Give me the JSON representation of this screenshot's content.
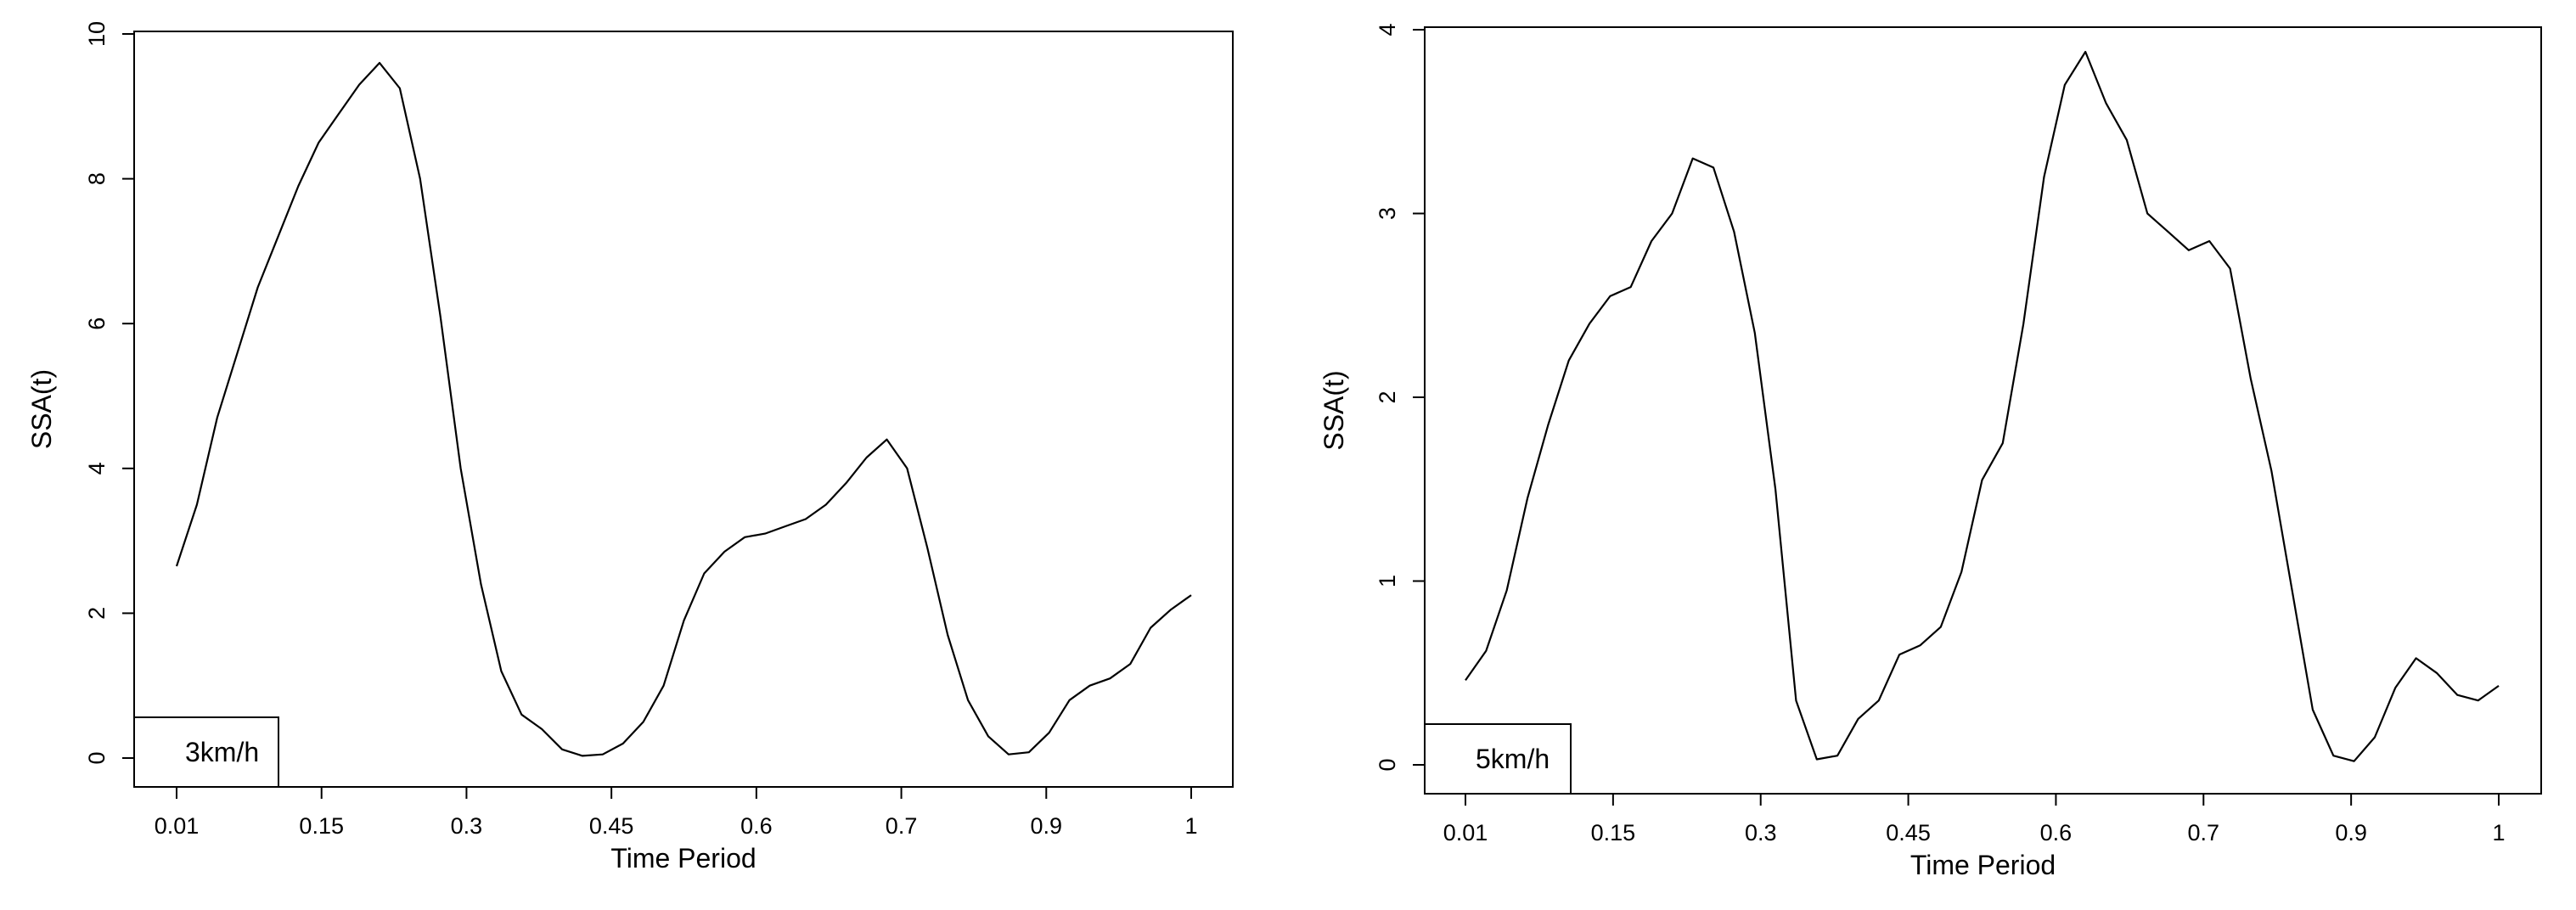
{
  "chart_data": [
    {
      "type": "line",
      "title": "",
      "xlabel": "Time Period",
      "ylabel": "SSA(t)",
      "xlim": [
        0,
        1
      ],
      "ylim": [
        0,
        10
      ],
      "x_tick_labels": [
        "0.01",
        "0.15",
        "0.3",
        "0.45",
        "0.6",
        "0.7",
        "0.9",
        "1"
      ],
      "y_ticks": [
        0,
        2,
        4,
        6,
        8,
        10
      ],
      "y_tick_labels": [
        "0",
        "2",
        "4",
        "6",
        "8",
        "10"
      ],
      "grid": false,
      "legend": {
        "position": "bottom-left",
        "text": "3km/h"
      },
      "line_color": "#000000",
      "series": [
        {
          "x": [
            0.0,
            0.02,
            0.04,
            0.06,
            0.08,
            0.1,
            0.12,
            0.14,
            0.16,
            0.18,
            0.2,
            0.22,
            0.24,
            0.26,
            0.28,
            0.3,
            0.32,
            0.34,
            0.36,
            0.38,
            0.4,
            0.42,
            0.44,
            0.46,
            0.48,
            0.5,
            0.52,
            0.54,
            0.56,
            0.58,
            0.6,
            0.62,
            0.64,
            0.66,
            0.68,
            0.7,
            0.72,
            0.74,
            0.76,
            0.78,
            0.8,
            0.82,
            0.84,
            0.86,
            0.88,
            0.9,
            0.92,
            0.94,
            0.96,
            0.98,
            1.0
          ],
          "values": [
            2.65,
            3.5,
            4.7,
            5.6,
            6.5,
            7.2,
            7.9,
            8.5,
            8.9,
            9.3,
            9.6,
            9.25,
            8.0,
            6.1,
            4.0,
            2.4,
            1.2,
            0.6,
            0.4,
            0.12,
            0.03,
            0.05,
            0.2,
            0.5,
            1.0,
            1.9,
            2.55,
            2.85,
            3.05,
            3.1,
            3.2,
            3.3,
            3.5,
            3.8,
            4.15,
            4.4,
            4.0,
            2.9,
            1.7,
            0.8,
            0.3,
            0.05,
            0.08,
            0.35,
            0.8,
            1.0,
            1.1,
            1.3,
            1.8,
            2.05,
            2.25
          ]
        }
      ]
    },
    {
      "type": "line",
      "title": "",
      "xlabel": "Time Period",
      "ylabel": "SSA(t)",
      "xlim": [
        0,
        1
      ],
      "ylim": [
        0,
        4
      ],
      "x_tick_labels": [
        "0.01",
        "0.15",
        "0.3",
        "0.45",
        "0.6",
        "0.7",
        "0.9",
        "1"
      ],
      "y_ticks": [
        0,
        1,
        2,
        3,
        4
      ],
      "y_tick_labels": [
        "0",
        "1",
        "2",
        "3",
        "4"
      ],
      "grid": false,
      "legend": {
        "position": "bottom-left",
        "text": "5km/h"
      },
      "line_color": "#000000",
      "series": [
        {
          "x": [
            0.0,
            0.02,
            0.04,
            0.06,
            0.08,
            0.1,
            0.12,
            0.14,
            0.16,
            0.18,
            0.2,
            0.22,
            0.24,
            0.26,
            0.28,
            0.3,
            0.32,
            0.34,
            0.36,
            0.38,
            0.4,
            0.42,
            0.44,
            0.46,
            0.48,
            0.5,
            0.52,
            0.54,
            0.56,
            0.58,
            0.6,
            0.62,
            0.64,
            0.66,
            0.68,
            0.7,
            0.72,
            0.74,
            0.76,
            0.78,
            0.8,
            0.82,
            0.84,
            0.86,
            0.88,
            0.9,
            0.92,
            0.94,
            0.96,
            0.98,
            1.0
          ],
          "values": [
            0.46,
            0.62,
            0.95,
            1.45,
            1.85,
            2.2,
            2.4,
            2.55,
            2.6,
            2.85,
            3.0,
            3.3,
            3.25,
            2.9,
            2.35,
            1.5,
            0.35,
            0.03,
            0.05,
            0.25,
            0.35,
            0.6,
            0.65,
            0.75,
            1.05,
            1.55,
            1.75,
            2.4,
            3.2,
            3.7,
            3.88,
            3.6,
            3.4,
            3.0,
            2.9,
            2.8,
            2.85,
            2.7,
            2.1,
            1.6,
            0.95,
            0.3,
            0.05,
            0.02,
            0.15,
            0.42,
            0.58,
            0.5,
            0.38,
            0.35,
            0.43
          ]
        }
      ]
    }
  ]
}
